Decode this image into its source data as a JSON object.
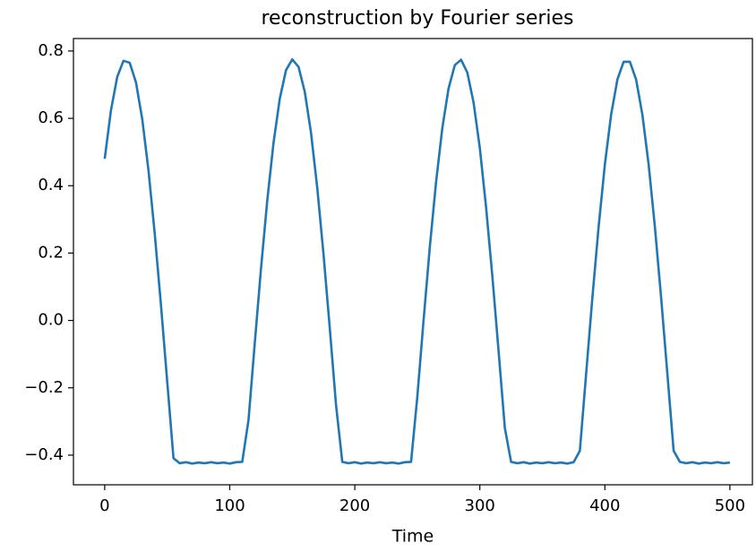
{
  "chart_data": {
    "type": "line",
    "title": "reconstruction by Fourier series",
    "x_label": "Time",
    "x": [
      0,
      5,
      10,
      15,
      20,
      25,
      30,
      35,
      40,
      45,
      50,
      55,
      60,
      65,
      70,
      75,
      80,
      85,
      90,
      95,
      100,
      105,
      110,
      115,
      120,
      125,
      130,
      135,
      140,
      145,
      150,
      155,
      160,
      165,
      170,
      175,
      180,
      185,
      190,
      195,
      200,
      205,
      210,
      215,
      220,
      225,
      230,
      235,
      240,
      245,
      250,
      255,
      260,
      265,
      270,
      275,
      280,
      285,
      290,
      295,
      300,
      305,
      310,
      315,
      320,
      325,
      330,
      335,
      340,
      345,
      350,
      355,
      360,
      365,
      370,
      375,
      380,
      385,
      390,
      395,
      400,
      405,
      410,
      415,
      420,
      425,
      430,
      435,
      440,
      445,
      450,
      455,
      460,
      465,
      470,
      475,
      480,
      485,
      490,
      495,
      500
    ],
    "series": [
      {
        "color": "#1f77b4",
        "values": [
          0.48,
          0.624,
          0.723,
          0.771,
          0.765,
          0.707,
          0.598,
          0.446,
          0.258,
          0.045,
          -0.182,
          -0.409,
          -0.424,
          -0.421,
          -0.425,
          -0.422,
          -0.424,
          -0.421,
          -0.424,
          -0.422,
          -0.425,
          -0.421,
          -0.42,
          -0.296,
          -0.068,
          0.154,
          0.356,
          0.527,
          0.658,
          0.743,
          0.775,
          0.753,
          0.679,
          0.557,
          0.393,
          0.196,
          -0.023,
          -0.251,
          -0.42,
          -0.424,
          -0.421,
          -0.425,
          -0.422,
          -0.424,
          -0.421,
          -0.424,
          -0.422,
          -0.425,
          -0.421,
          -0.42,
          -0.227,
          0,
          0.218,
          0.411,
          0.571,
          0.689,
          0.758,
          0.774,
          0.736,
          0.647,
          0.512,
          0.336,
          0.132,
          -0.091,
          -0.319,
          -0.42,
          -0.424,
          -0.421,
          -0.425,
          -0.422,
          -0.424,
          -0.421,
          -0.424,
          -0.422,
          -0.425,
          -0.421,
          -0.387,
          -0.159,
          0.067,
          0.278,
          0.463,
          0.611,
          0.715,
          0.768,
          0.768,
          0.715,
          0.611,
          0.463,
          0.278,
          0.067,
          -0.159,
          -0.387,
          -0.42,
          -0.424,
          -0.421,
          -0.425,
          -0.422,
          -0.424,
          -0.421,
          -0.424,
          -0.422
        ]
      }
    ],
    "xlim": [
      -25,
      518
    ],
    "ylim": [
      -0.488,
      0.837
    ],
    "xticks": [
      0,
      100,
      200,
      300,
      400,
      500
    ],
    "yticks": [
      {
        "value": -0.4,
        "label": "−0.4"
      },
      {
        "value": -0.2,
        "label": "−0.2"
      },
      {
        "value": 0,
        "label": "0.0"
      },
      0.2,
      0.4,
      0.6,
      0.8
    ],
    "grid": false
  }
}
